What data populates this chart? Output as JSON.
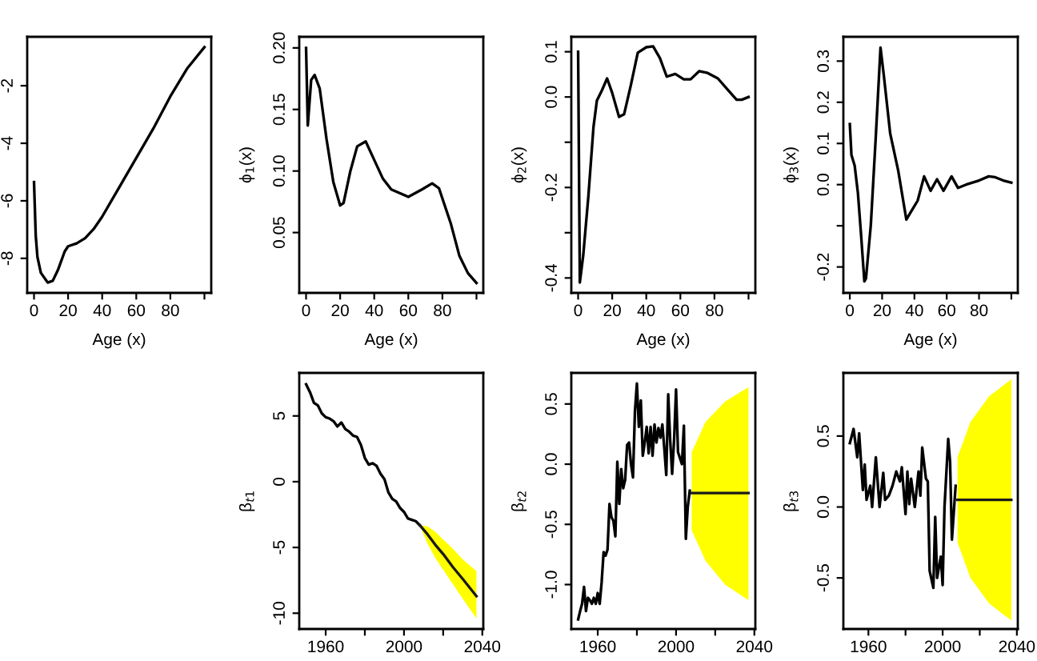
{
  "chart_data": [
    {
      "type": "line",
      "xlabel": "Age (x)",
      "xlim": [
        -4,
        104
      ],
      "ylim": [
        -9.2,
        -0.3
      ],
      "xticks": [
        0,
        20,
        40,
        60,
        80,
        {
          "value": 100,
          "label": null
        }
      ],
      "yticks": [
        -8,
        -6,
        -4,
        -2
      ],
      "series": [
        {
          "color": "#000000",
          "x": [
            0,
            1,
            2,
            4,
            8,
            11,
            14,
            18,
            20,
            25,
            30,
            35,
            40,
            50,
            60,
            70,
            80,
            90,
            100
          ],
          "values": [
            -5.35,
            -7.2,
            -7.95,
            -8.5,
            -8.84,
            -8.78,
            -8.41,
            -7.76,
            -7.58,
            -7.48,
            -7.3,
            -6.98,
            -6.55,
            -5.53,
            -4.51,
            -3.49,
            -2.37,
            -1.39,
            -0.66
          ]
        }
      ]
    },
    {
      "type": "line",
      "xlabel": "Age (x)",
      "ylabel": "ϕ$_{1}$(x)",
      "xlim": [
        -4,
        104
      ],
      "ylim": [
        0.001,
        0.209
      ],
      "xticks": [
        0,
        20,
        40,
        60,
        80,
        {
          "value": 100,
          "label": null
        }
      ],
      "yticks": [
        0.05,
        {
          "value": 0.1,
          "label": "0.10"
        },
        0.15,
        {
          "value": 0.2,
          "label": "0.20"
        }
      ],
      "series": [
        {
          "color": "#000000",
          "x": [
            0,
            1,
            3,
            5,
            8,
            12,
            16,
            20,
            22,
            26,
            30,
            35,
            40,
            45,
            50,
            60,
            68,
            74,
            78,
            85,
            90,
            95,
            100
          ],
          "values": [
            0.2,
            0.137,
            0.174,
            0.178,
            0.167,
            0.126,
            0.091,
            0.072,
            0.074,
            0.1,
            0.12,
            0.124,
            0.109,
            0.094,
            0.085,
            0.079,
            0.085,
            0.09,
            0.086,
            0.057,
            0.031,
            0.017,
            0.009
          ]
        }
      ]
    },
    {
      "type": "line",
      "xlabel": "Age (x)",
      "ylabel": "ϕ$_{2}$(x)",
      "xlim": [
        -4,
        104
      ],
      "ylim": [
        -0.433,
        0.133
      ],
      "xticks": [
        0,
        20,
        40,
        60,
        80,
        {
          "value": 100,
          "label": null
        }
      ],
      "yticks": [
        {
          "value": -0.4,
          "label": "-0.4"
        },
        {
          "value": -0.3,
          "label": null
        },
        {
          "value": -0.2,
          "label": "-0.2"
        },
        {
          "value": -0.1,
          "label": null
        },
        {
          "value": 0.0,
          "label": "0.0"
        },
        {
          "value": 0.1,
          "label": "0.1"
        }
      ],
      "series": [
        {
          "color": "#000000",
          "x": [
            0,
            1,
            3,
            6,
            9,
            11,
            14,
            17,
            20,
            24,
            27,
            31,
            35,
            40,
            44,
            48,
            52,
            57,
            62,
            66,
            71,
            76,
            82,
            88,
            93,
            96,
            100
          ],
          "values": [
            0.1,
            -0.41,
            -0.35,
            -0.22,
            -0.067,
            -0.008,
            0.015,
            0.041,
            0.009,
            -0.044,
            -0.038,
            0.027,
            0.098,
            0.11,
            0.112,
            0.086,
            0.045,
            0.051,
            0.039,
            0.039,
            0.057,
            0.053,
            0.041,
            0.015,
            -0.006,
            -0.006,
            0.0
          ]
        }
      ]
    },
    {
      "type": "line",
      "xlabel": "Age (x)",
      "ylabel": "ϕ$_{3}$(x)",
      "xlim": [
        -4,
        104
      ],
      "ylim": [
        -0.263,
        0.359
      ],
      "xticks": [
        0,
        20,
        40,
        60,
        80,
        {
          "value": 100,
          "label": null
        }
      ],
      "yticks": [
        {
          "value": -0.2,
          "label": "-0.2"
        },
        {
          "value": -0.1,
          "label": null
        },
        {
          "value": 0.0,
          "label": "0.0"
        },
        {
          "value": 0.1,
          "label": "0.1"
        },
        {
          "value": 0.2,
          "label": "0.2"
        },
        {
          "value": 0.3,
          "label": "0.3"
        }
      ],
      "series": [
        {
          "color": "#000000",
          "x": [
            0,
            1,
            2,
            3,
            5,
            7,
            9,
            10,
            13,
            16,
            19,
            21,
            25,
            30,
            35,
            38,
            42,
            46,
            50,
            54,
            58,
            63,
            67,
            72,
            80,
            86,
            90,
            95,
            100
          ],
          "values": [
            0.147,
            0.072,
            0.059,
            0.046,
            -0.02,
            -0.124,
            -0.235,
            -0.228,
            -0.098,
            0.111,
            0.333,
            0.267,
            0.124,
            0.033,
            -0.085,
            -0.065,
            -0.039,
            0.02,
            -0.015,
            0.013,
            -0.015,
            0.02,
            -0.008,
            0.0,
            0.01,
            0.02,
            0.018,
            0.01,
            0.005
          ]
        }
      ]
    },
    {
      "type": "line",
      "ylabel": "β$_{t1}$",
      "xlim": [
        1946.5,
        2040.5
      ],
      "ylim": [
        -11.2,
        8.27
      ],
      "xticks": [
        1960,
        {
          "value": 1980,
          "label": null
        },
        2000,
        {
          "value": 2020,
          "label": null
        },
        2040
      ],
      "yticks": [
        -10,
        -5,
        0,
        5
      ],
      "series": [
        {
          "color": "#000000",
          "x": [
            1950,
            1952,
            1954,
            1956,
            1958,
            1960,
            1962,
            1964,
            1966,
            1968,
            1970,
            1972,
            1974,
            1976,
            1978,
            1980,
            1982,
            1984,
            1986,
            1988,
            1990,
            1992,
            1994,
            1996,
            1998,
            2000,
            2002,
            2004,
            2006,
            2008
          ],
          "values": [
            7.4,
            6.8,
            6.0,
            5.8,
            5.2,
            4.9,
            4.8,
            4.6,
            4.2,
            4.5,
            4.0,
            3.8,
            3.5,
            3.4,
            2.8,
            1.8,
            1.3,
            1.4,
            1.2,
            0.6,
            0.2,
            -0.8,
            -1.3,
            -1.5,
            -2.0,
            -2.3,
            -2.8,
            -2.9,
            -3.0,
            -3.3
          ]
        },
        {
          "color": "#1a1a1a",
          "x": [
            2008,
            2012,
            2016,
            2020,
            2025,
            2030,
            2037
          ],
          "values": [
            -3.3,
            -4.0,
            -4.8,
            -5.5,
            -6.5,
            -7.4,
            -8.7
          ],
          "upper": [
            -3.3,
            -3.4,
            -3.8,
            -4.4,
            -5.1,
            -5.9,
            -6.8
          ],
          "lower": [
            -3.3,
            -4.7,
            -5.8,
            -6.7,
            -7.8,
            -8.9,
            -10.4
          ]
        }
      ]
    },
    {
      "type": "line",
      "ylabel": "β$_{t2}$",
      "xlim": [
        1946.5,
        2040.5
      ],
      "ylim": [
        -1.369,
        0.758
      ],
      "xticks": [
        1960,
        {
          "value": 1980,
          "label": null
        },
        2000,
        {
          "value": 2020,
          "label": null
        },
        2040
      ],
      "yticks": [
        {
          "value": -1.0,
          "label": "-1.0"
        },
        -0.5,
        {
          "value": 0.0,
          "label": "0.0"
        },
        0.5
      ],
      "series": [
        {
          "color": "#000000",
          "x": [
            1950,
            1951,
            1952,
            1953,
            1954,
            1955,
            1956,
            1957,
            1958,
            1959,
            1960,
            1961,
            1962,
            1963,
            1964,
            1965,
            1966,
            1967,
            1968,
            1969,
            1970,
            1971,
            1972,
            1973,
            1974,
            1975,
            1976,
            1977,
            1978,
            1979,
            1980,
            1981,
            1982,
            1983,
            1984,
            1985,
            1986,
            1987,
            1988,
            1989,
            1990,
            1991,
            1992,
            1993,
            1994,
            1995,
            1996,
            1997,
            1998,
            1999,
            2000,
            2001,
            2002,
            2003,
            2004,
            2005,
            2006,
            2007
          ],
          "values": [
            -1.29,
            -1.22,
            -1.16,
            -1.02,
            -1.22,
            -1.11,
            -1.13,
            -1.16,
            -1.11,
            -1.16,
            -1.07,
            -1.16,
            -0.98,
            -0.73,
            -0.76,
            -0.71,
            -0.33,
            -0.44,
            -0.47,
            -0.6,
            0.02,
            -0.33,
            -0.04,
            -0.2,
            -0.13,
            0.16,
            0.18,
            0.0,
            -0.11,
            0.44,
            0.67,
            0.31,
            0.53,
            0.07,
            0.18,
            0.31,
            0.09,
            0.31,
            0.07,
            0.33,
            0.18,
            0.3,
            0.22,
            0.33,
            0.13,
            -0.09,
            0.58,
            0.2,
            -0.08,
            0.2,
            0.62,
            0.1,
            0.05,
            0.0,
            0.32,
            -0.62,
            -0.35,
            -0.22
          ]
        },
        {
          "color": "#1a1a1a",
          "x": [
            2008,
            2015,
            2025,
            2037
          ],
          "values": [
            -0.24,
            -0.24,
            -0.24,
            -0.24
          ],
          "upper": [
            0.1,
            0.35,
            0.52,
            0.64
          ],
          "lower": [
            -0.55,
            -0.8,
            -1.0,
            -1.13
          ]
        }
      ]
    },
    {
      "type": "line",
      "ylabel": "β$_{t3}$",
      "xlim": [
        1946.5,
        2040.5
      ],
      "ylim": [
        -0.86,
        0.945
      ],
      "xticks": [
        1960,
        {
          "value": 1980,
          "label": null
        },
        2000,
        {
          "value": 2020,
          "label": null
        },
        2040
      ],
      "yticks": [
        -0.5,
        {
          "value": 0.0,
          "label": "0.0"
        },
        0.5
      ],
      "series": [
        {
          "color": "#000000",
          "x": [
            1950,
            1952,
            1954,
            1955,
            1957,
            1958,
            1959,
            1961,
            1962,
            1964,
            1966,
            1968,
            1969,
            1971,
            1973,
            1974,
            1975,
            1977,
            1978,
            1980,
            1981,
            1982,
            1983,
            1985,
            1987,
            1988,
            1989,
            1991,
            1992,
            1993,
            1995,
            1996,
            1997,
            1999,
            2000,
            2001,
            2003,
            2004,
            2005,
            2007
          ],
          "values": [
            0.45,
            0.55,
            0.35,
            0.52,
            0.12,
            0.3,
            0.05,
            0.15,
            0.0,
            0.35,
            0.0,
            0.24,
            0.05,
            0.08,
            0.15,
            0.2,
            0.25,
            0.18,
            0.28,
            -0.05,
            0.25,
            0.02,
            0.2,
            0.0,
            0.25,
            0.08,
            0.42,
            0.2,
            0.18,
            -0.45,
            -0.57,
            -0.07,
            -0.5,
            -0.35,
            -0.55,
            0.0,
            0.48,
            0.32,
            -0.23,
            0.15
          ]
        },
        {
          "color": "#1a1a1a",
          "x": [
            2008,
            2015,
            2025,
            2037
          ],
          "values": [
            0.05,
            0.05,
            0.05,
            0.05
          ],
          "upper": [
            0.35,
            0.6,
            0.78,
            0.9
          ],
          "lower": [
            -0.25,
            -0.5,
            -0.68,
            -0.8
          ]
        }
      ]
    }
  ]
}
